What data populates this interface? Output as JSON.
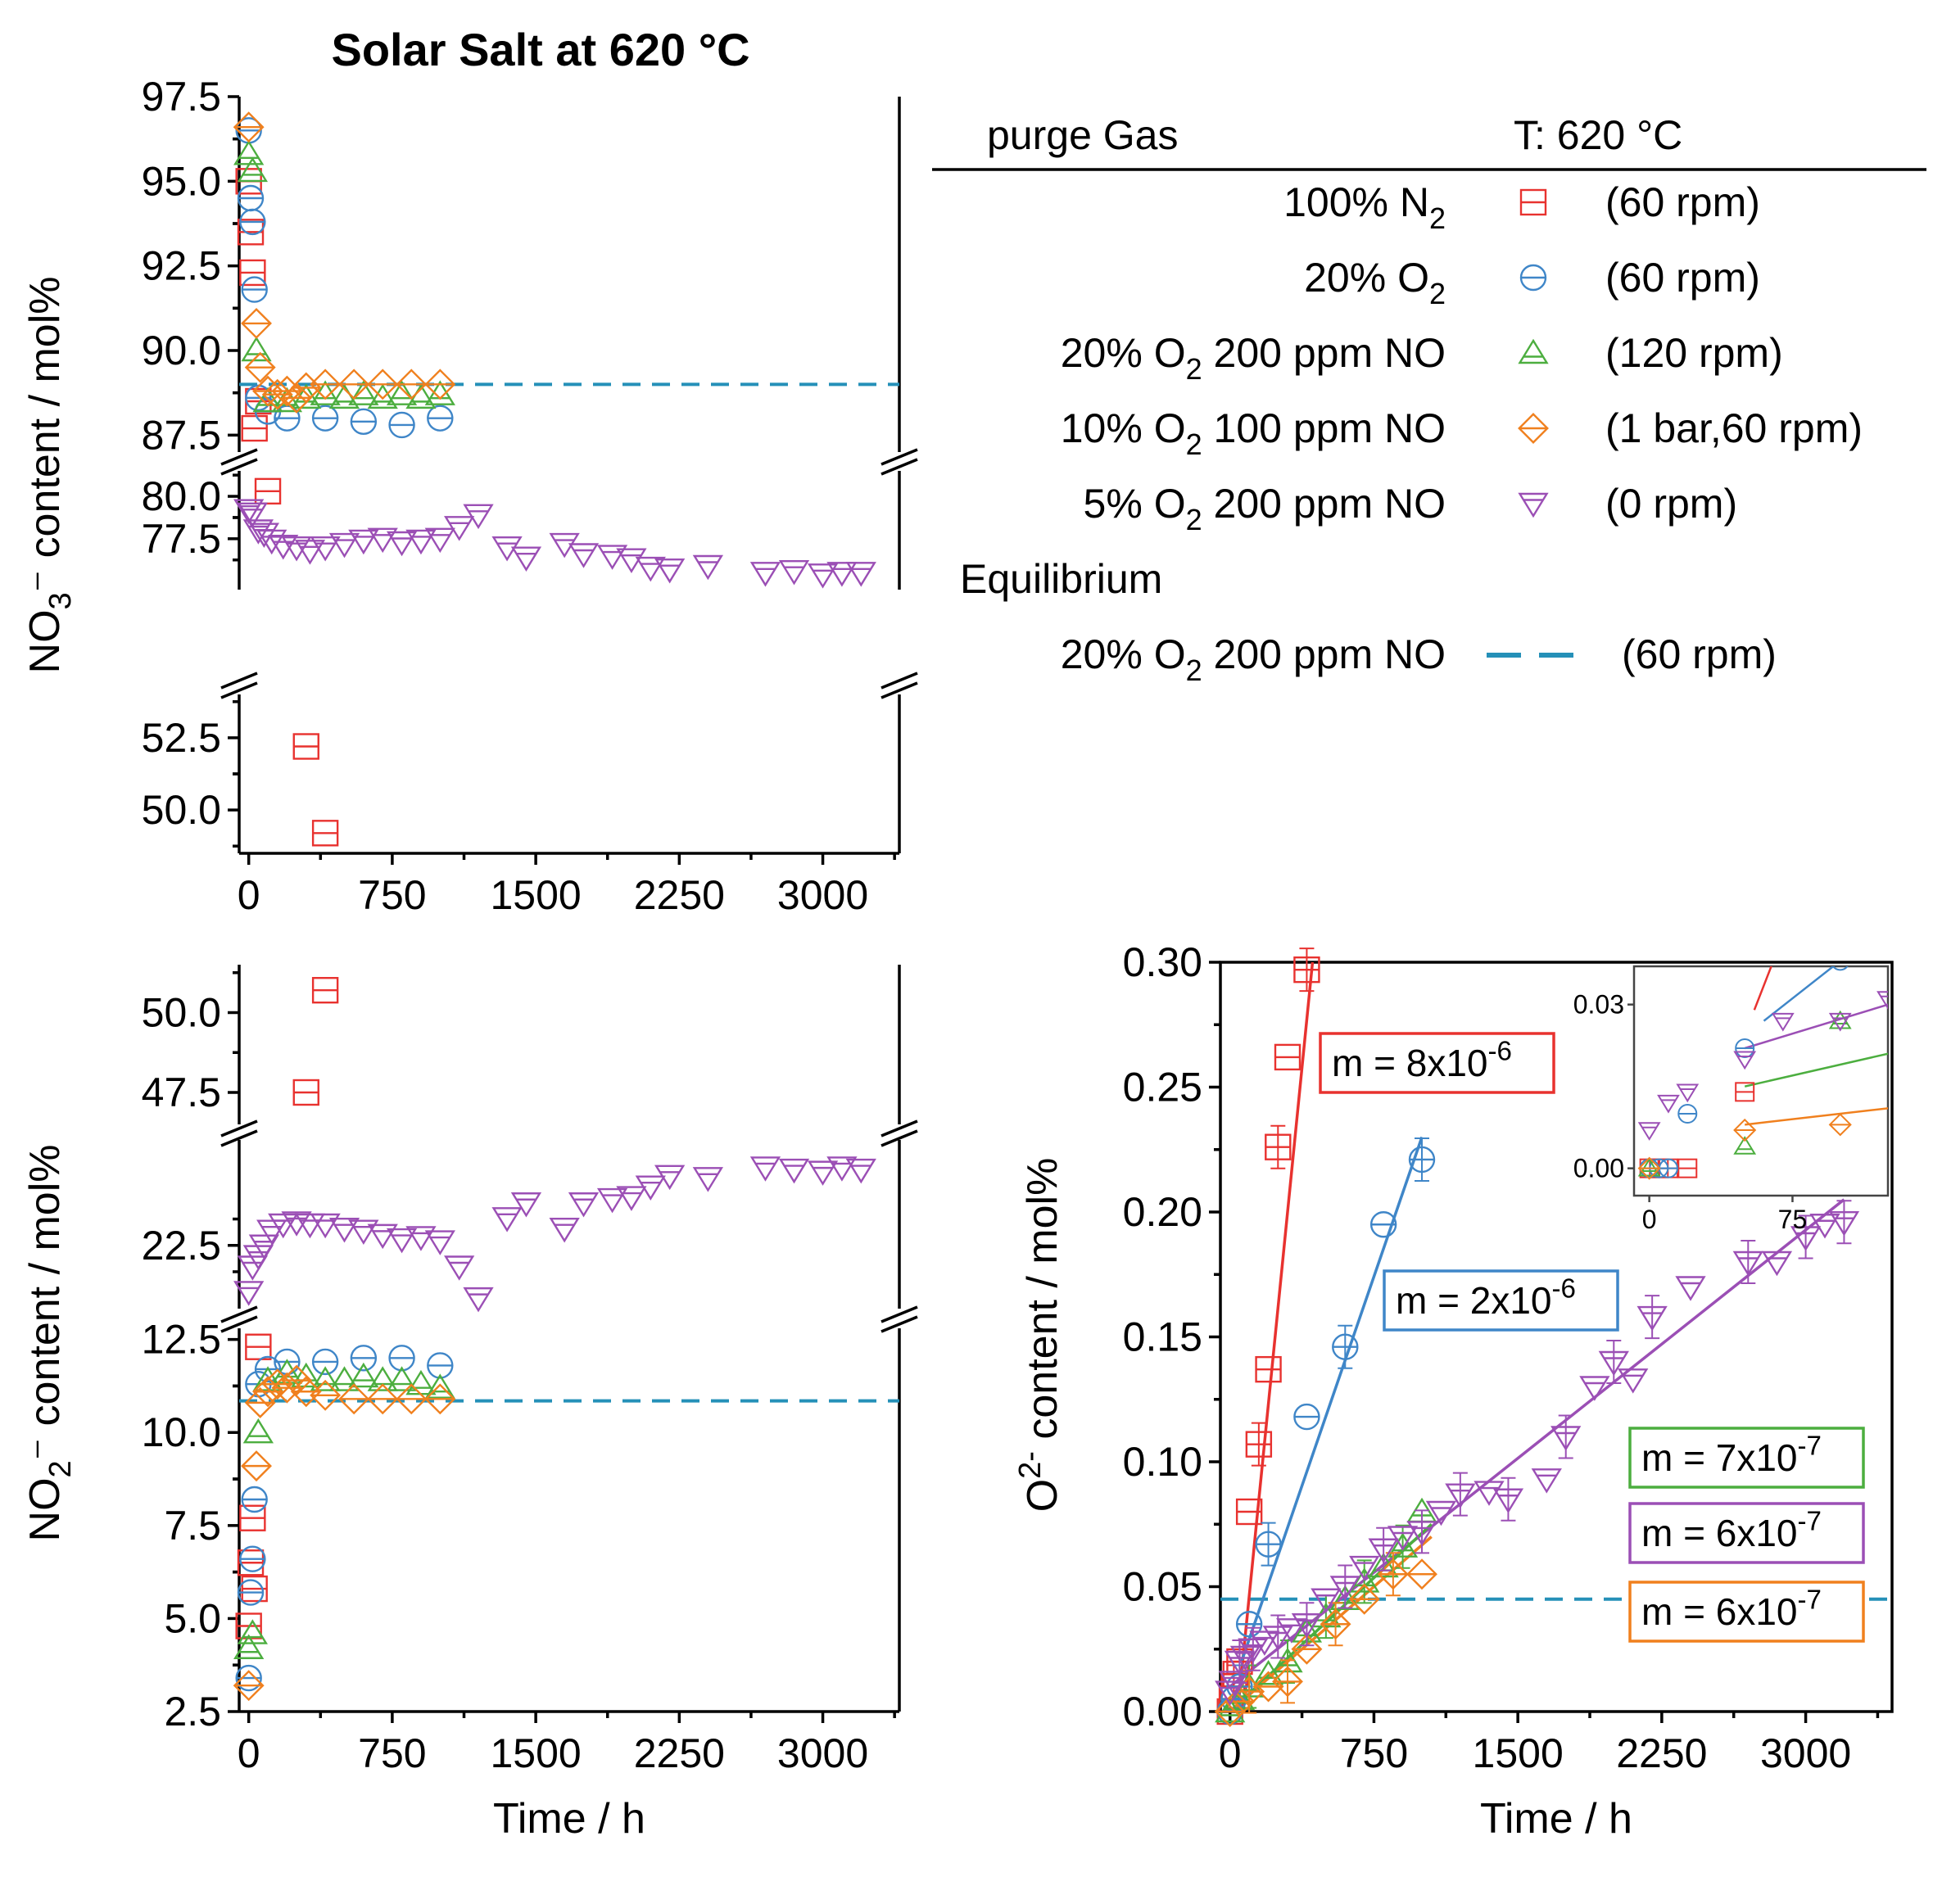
{
  "figure": {
    "title": "Solar Salt at 620 °C",
    "colors": {
      "n2": "#e8322f",
      "o2": "#3f86c8",
      "o2no200": "#4cae3f",
      "o2no100": "#f0801e",
      "o2no5": "#9b4fb5",
      "eq": "#2590b8"
    }
  },
  "legend": {
    "header_gas": "purge Gas",
    "header_temp": "T: 620 °C",
    "rows": [
      {
        "pre": "100% N",
        "sub": "2",
        "post": "",
        "marker": "square",
        "color": "#e8322f",
        "rpm": "(60 rpm)"
      },
      {
        "pre": "20% O",
        "sub": "2",
        "post": "",
        "marker": "circle",
        "color": "#3f86c8",
        "rpm": "(60 rpm)"
      },
      {
        "pre": "20% O",
        "sub": "2",
        "post": " 200 ppm NO",
        "marker": "triangle-up",
        "color": "#4cae3f",
        "rpm": "(120 rpm)"
      },
      {
        "pre": "10% O",
        "sub": "2",
        "post": " 100 ppm NO",
        "marker": "diamond",
        "color": "#f0801e",
        "rpm": "(1 bar,60 rpm)"
      },
      {
        "pre": "5% O",
        "sub": "2",
        "post": " 200 ppm NO",
        "marker": "triangle-down",
        "color": "#9b4fb5",
        "rpm": "(0 rpm)"
      }
    ],
    "eq_title": "Equilibrium",
    "eq_pre": "20% O",
    "eq_sub": "2",
    "eq_post": " 200 ppm NO",
    "eq_rpm": "(60 rpm)"
  },
  "chart_data": [
    {
      "id": "nitrate",
      "type": "scatter",
      "ylabel": "NO3⁻ content / mol%",
      "xlabel": "",
      "xlim": [
        -50,
        3400
      ],
      "xticks": [
        "0",
        "750",
        "1500",
        "2250",
        "3000"
      ],
      "segments": [
        {
          "ylim": [
            48.5,
            54
          ],
          "ticks": [
            "50.0",
            "52.5"
          ]
        },
        {
          "ylim": [
            74.5,
            81.5
          ],
          "ticks": [
            "77.5",
            "80.0"
          ]
        },
        {
          "ylim": [
            87,
            97.5
          ],
          "ticks": [
            "87.5",
            "90.0",
            "92.5",
            "95.0",
            "97.5"
          ]
        }
      ],
      "equilibrium": 89.0,
      "series": [
        {
          "name": "100% N2 (60 rpm)",
          "marker": "square",
          "color": "#e8322f",
          "x": [
            0,
            10,
            20,
            30,
            50,
            100,
            300,
            400
          ],
          "y": [
            95.0,
            93.5,
            92.3,
            87.7,
            88.5,
            80.3,
            52.2,
            49.2
          ]
        },
        {
          "name": "20% O2 (60 rpm)",
          "marker": "circle",
          "color": "#3f86c8",
          "x": [
            0,
            10,
            20,
            30,
            50,
            100,
            200,
            400,
            600,
            800,
            1000
          ],
          "y": [
            96.5,
            94.5,
            93.8,
            91.8,
            88.6,
            88.2,
            88.0,
            88.0,
            87.9,
            87.8,
            88.0
          ]
        },
        {
          "name": "20% O2 200 ppm NO (120 rpm)",
          "marker": "triangle-up",
          "color": "#4cae3f",
          "x": [
            0,
            20,
            40,
            100,
            200,
            300,
            400,
            500,
            600,
            700,
            800,
            900,
            1000
          ],
          "y": [
            95.8,
            95.3,
            90.0,
            88.5,
            88.5,
            88.6,
            88.7,
            88.6,
            88.7,
            88.6,
            88.7,
            88.6,
            88.7
          ]
        },
        {
          "name": "10% O2 100 ppm NO (1 bar,60 rpm)",
          "marker": "diamond",
          "color": "#f0801e",
          "x": [
            0,
            40,
            60,
            100,
            150,
            200,
            250,
            300,
            400,
            550,
            700,
            850,
            1000
          ],
          "y": [
            96.6,
            90.8,
            89.5,
            88.8,
            88.7,
            88.8,
            88.6,
            88.9,
            89.0,
            89.0,
            89.0,
            89.0,
            89.0
          ]
        },
        {
          "name": "5% O2 200 ppm NO (0 rpm)",
          "marker": "triangle-down",
          "color": "#9b4fb5",
          "x": [
            0,
            20,
            50,
            80,
            120,
            180,
            250,
            320,
            400,
            500,
            600,
            700,
            800,
            900,
            1000,
            1100,
            1200,
            1350,
            1450,
            1650,
            1750,
            1900,
            2000,
            2100,
            2200,
            2400,
            2700,
            2850,
            3000,
            3100,
            3200
          ],
          "y": [
            79.2,
            79.0,
            78.0,
            77.8,
            77.4,
            77.1,
            77.0,
            76.8,
            77.0,
            77.2,
            77.4,
            77.5,
            77.3,
            77.4,
            77.5,
            78.2,
            78.9,
            77.0,
            76.4,
            77.2,
            76.6,
            76.5,
            76.3,
            75.8,
            75.7,
            75.9,
            75.5,
            75.6,
            75.4,
            75.5,
            75.5
          ]
        }
      ]
    },
    {
      "id": "nitrite",
      "type": "scatter",
      "ylabel": "NO2⁻ content / mol%",
      "xlabel": "Time / h",
      "xlim": [
        -50,
        3400
      ],
      "xticks": [
        "0",
        "750",
        "1500",
        "2250",
        "3000"
      ],
      "segments": [
        {
          "ylim": [
            2.5,
            12.8
          ],
          "ticks": [
            "2.5",
            "5.0",
            "7.5",
            "10.0",
            "12.5"
          ]
        },
        {
          "ylim": [
            19.5,
            27.5
          ],
          "ticks": [
            "22.5"
          ]
        },
        {
          "ylim": [
            46.5,
            51.5
          ],
          "ticks": [
            "47.5",
            "50.0"
          ]
        }
      ],
      "equilibrium": 10.85,
      "series": [
        {
          "name": "100% N2 (60 rpm)",
          "marker": "square",
          "color": "#e8322f",
          "x": [
            0,
            10,
            20,
            30,
            50,
            300,
            400
          ],
          "y": [
            4.8,
            6.5,
            7.7,
            5.8,
            12.3,
            47.5,
            50.7
          ]
        },
        {
          "name": "20% O2 (60 rpm)",
          "marker": "circle",
          "color": "#3f86c8",
          "x": [
            0,
            10,
            20,
            30,
            50,
            100,
            200,
            400,
            600,
            800,
            1000
          ],
          "y": [
            3.4,
            5.7,
            6.6,
            8.2,
            11.3,
            11.7,
            11.9,
            11.9,
            12.0,
            12.0,
            11.8
          ]
        },
        {
          "name": "20% O2 200 ppm NO (120 rpm)",
          "marker": "triangle-up",
          "color": "#4cae3f",
          "x": [
            0,
            20,
            50,
            100,
            200,
            300,
            400,
            500,
            600,
            700,
            800,
            900,
            1000
          ],
          "y": [
            4.2,
            4.6,
            10.0,
            11.4,
            11.6,
            11.5,
            11.4,
            11.4,
            11.5,
            11.4,
            11.4,
            11.3,
            11.2
          ]
        },
        {
          "name": "10% O2 100 ppm NO (1 bar,60 rpm)",
          "marker": "diamond",
          "color": "#f0801e",
          "x": [
            0,
            40,
            60,
            100,
            150,
            200,
            250,
            300,
            400,
            550,
            700,
            850,
            1000
          ],
          "y": [
            3.2,
            9.1,
            10.8,
            11.1,
            11.3,
            11.2,
            11.4,
            11.1,
            11.0,
            10.9,
            10.9,
            10.9,
            10.9
          ]
        },
        {
          "name": "5% O2 200 ppm NO (0 rpm)",
          "marker": "triangle-down",
          "color": "#9b4fb5",
          "x": [
            0,
            20,
            50,
            80,
            120,
            180,
            250,
            320,
            400,
            500,
            600,
            700,
            800,
            900,
            1000,
            1100,
            1200,
            1350,
            1450,
            1650,
            1750,
            1900,
            2000,
            2100,
            2200,
            2400,
            2700,
            2850,
            3000,
            3100,
            3200
          ],
          "y": [
            20.3,
            21.5,
            22.0,
            22.5,
            23.2,
            23.5,
            23.6,
            23.5,
            23.5,
            23.3,
            23.2,
            23.0,
            22.8,
            22.9,
            22.7,
            21.5,
            20.0,
            23.8,
            24.5,
            23.3,
            24.5,
            24.7,
            24.8,
            25.3,
            25.8,
            25.7,
            26.2,
            26.1,
            26.0,
            26.2,
            26.1
          ]
        }
      ]
    },
    {
      "id": "oxide",
      "type": "scatter",
      "ylabel": "O2⁻ content / mol%",
      "xlabel": "Time / h",
      "xlim": [
        -50,
        3450
      ],
      "ylim": [
        0,
        0.3
      ],
      "xticks": [
        "0",
        "750",
        "1500",
        "2250",
        "3000"
      ],
      "yticks": [
        "0.00",
        "0.05",
        "0.10",
        "0.15",
        "0.20",
        "0.25",
        "0.30"
      ],
      "equilibrium": 0.045,
      "fits": [
        {
          "color": "#e8322f",
          "x0": 40,
          "y0": 0.0,
          "x1": 430,
          "y1": 0.3
        },
        {
          "color": "#3f86c8",
          "x0": 60,
          "y0": 0.02,
          "x1": 1000,
          "y1": 0.23
        },
        {
          "color": "#9b4fb5",
          "x0": 0,
          "y0": 0.01,
          "x1": 3200,
          "y1": 0.205
        },
        {
          "color": "#4cae3f",
          "x0": 0,
          "y0": 0.0,
          "x1": 1050,
          "y1": 0.075
        },
        {
          "color": "#f0801e",
          "x0": 0,
          "y0": 0.0,
          "x1": 1050,
          "y1": 0.07
        }
      ],
      "slopes": [
        {
          "prefix": "m = 8x10",
          "exp": "-6",
          "color": "#e8322f"
        },
        {
          "prefix": "m = 2x10",
          "exp": "-6",
          "color": "#3f86c8"
        },
        {
          "prefix": "m = 7x10",
          "exp": "-7",
          "color": "#4cae3f"
        },
        {
          "prefix": "m = 6x10",
          "exp": "-7",
          "color": "#9b4fb5"
        },
        {
          "prefix": "m = 6x10",
          "exp": "-7",
          "color": "#f0801e"
        }
      ],
      "series": [
        {
          "name": "100% N2 (60 rpm)",
          "marker": "square",
          "color": "#e8322f",
          "x": [
            0,
            10,
            20,
            30,
            50,
            100,
            150,
            200,
            250,
            300,
            400
          ],
          "y": [
            0.0,
            0.005,
            0.01,
            0.015,
            0.02,
            0.08,
            0.107,
            0.137,
            0.226,
            0.262,
            0.297
          ]
        },
        {
          "name": "20% O2 (60 rpm)",
          "marker": "circle",
          "color": "#3f86c8",
          "x": [
            0,
            20,
            50,
            100,
            200,
            400,
            600,
            800,
            1000
          ],
          "y": [
            0.0,
            0.005,
            0.01,
            0.035,
            0.067,
            0.118,
            0.146,
            0.195,
            0.221
          ]
        },
        {
          "name": "20% O2 200 ppm NO (120 rpm)",
          "marker": "triangle-up",
          "color": "#4cae3f",
          "x": [
            0,
            50,
            100,
            200,
            300,
            400,
            500,
            600,
            700,
            800,
            900,
            1000
          ],
          "y": [
            0.0,
            0.005,
            0.01,
            0.015,
            0.02,
            0.032,
            0.038,
            0.045,
            0.052,
            0.058,
            0.066,
            0.08
          ]
        },
        {
          "name": "10% O2 100 ppm NO (1 bar,60 rpm)",
          "marker": "diamond",
          "color": "#f0801e",
          "x": [
            0,
            50,
            100,
            200,
            300,
            400,
            550,
            700,
            850,
            1000
          ],
          "y": [
            0.0,
            0.004,
            0.008,
            0.01,
            0.012,
            0.025,
            0.035,
            0.045,
            0.055,
            0.055
          ]
        },
        {
          "name": "5% O2 200 ppm NO (0 rpm)",
          "marker": "triangle-down",
          "color": "#9b4fb5",
          "x": [
            0,
            20,
            50,
            80,
            120,
            180,
            250,
            320,
            400,
            500,
            600,
            700,
            800,
            900,
            1000,
            1100,
            1200,
            1350,
            1450,
            1650,
            1750,
            1900,
            2000,
            2100,
            2200,
            2400,
            2700,
            2850,
            3000,
            3100,
            3200
          ],
          "y": [
            0.008,
            0.012,
            0.02,
            0.022,
            0.025,
            0.028,
            0.03,
            0.033,
            0.035,
            0.045,
            0.05,
            0.058,
            0.065,
            0.07,
            0.072,
            0.08,
            0.087,
            0.088,
            0.085,
            0.093,
            0.11,
            0.13,
            0.14,
            0.133,
            0.158,
            0.17,
            0.18,
            0.18,
            0.19,
            0.195,
            0.196
          ]
        }
      ],
      "inset": {
        "xlim": [
          -8,
          125
        ],
        "ylim": [
          -0.005,
          0.037
        ],
        "xticks": [
          "0",
          "75"
        ],
        "yticks": [
          "0.00",
          "0.03"
        ],
        "series": [
          {
            "marker": "square",
            "color": "#e8322f",
            "x": [
              0,
              5,
              10,
              20,
              50
            ],
            "y": [
              0.0,
              0.0,
              0.0,
              0.0,
              0.014
            ]
          },
          {
            "marker": "circle",
            "color": "#3f86c8",
            "x": [
              0,
              5,
              10,
              20,
              50,
              100
            ],
            "y": [
              0.0,
              0.0,
              0.0,
              0.01,
              0.022,
              0.038
            ]
          },
          {
            "marker": "triangle-up",
            "color": "#4cae3f",
            "x": [
              0,
              50,
              100
            ],
            "y": [
              0.0,
              0.004,
              0.027
            ]
          },
          {
            "marker": "diamond",
            "color": "#f0801e",
            "x": [
              0,
              50,
              100
            ],
            "y": [
              0.0,
              0.007,
              0.008
            ]
          },
          {
            "marker": "triangle-down",
            "color": "#9b4fb5",
            "x": [
              0,
              10,
              20,
              50,
              70,
              100,
              125
            ],
            "y": [
              0.007,
              0.012,
              0.014,
              0.02,
              0.027,
              0.027,
              0.031
            ]
          }
        ],
        "fits": [
          {
            "color": "#e8322f",
            "x0": 55,
            "y0": 0.029,
            "x1": 65,
            "y1": 0.038
          },
          {
            "color": "#3f86c8",
            "x0": 60,
            "y0": 0.027,
            "x1": 100,
            "y1": 0.038
          },
          {
            "color": "#9b4fb5",
            "x0": 50,
            "y0": 0.022,
            "x1": 125,
            "y1": 0.03
          },
          {
            "color": "#4cae3f",
            "x0": 50,
            "y0": 0.015,
            "x1": 125,
            "y1": 0.021
          },
          {
            "color": "#f0801e",
            "x0": 50,
            "y0": 0.008,
            "x1": 125,
            "y1": 0.011
          }
        ]
      }
    }
  ]
}
